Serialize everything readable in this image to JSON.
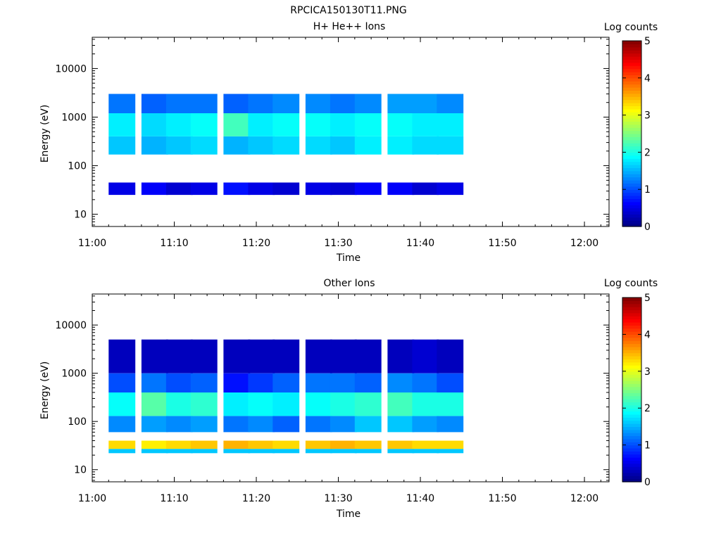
{
  "figure_title": "RPCICA150130T11.PNG",
  "panels": [
    {
      "title": "H+ He++ Ions",
      "xlabel": "Time",
      "ylabel": "Energy (eV)",
      "cbar_label": "Log counts"
    },
    {
      "title": "Other Ions",
      "xlabel": "Time",
      "ylabel": "Energy (eV)",
      "cbar_label": "Log counts"
    }
  ],
  "colors": {
    "background": "#ffffff",
    "axis": "#000000"
  },
  "chart_data": [
    {
      "type": "heatmap",
      "title": "H+ He++ Ions",
      "xlabel": "Time",
      "ylabel": "Energy (eV)",
      "x_ticks": [
        "11:00",
        "11:10",
        "11:20",
        "11:30",
        "11:40",
        "11:50",
        "12:00"
      ],
      "xlim": [
        "11:00",
        "12:03"
      ],
      "y_scale": "log",
      "y_ticks": [
        "10",
        "100",
        "1000",
        "10000"
      ],
      "ylim": [
        5.6,
        44000
      ],
      "colorbar": {
        "label": "Log counts",
        "ticks": [
          "0",
          "1",
          "2",
          "3",
          "4",
          "5"
        ],
        "range": [
          0,
          5
        ],
        "colormap": "jet"
      },
      "time_bins": [
        "11:02",
        "11:06",
        "11:09",
        "11:12",
        "11:16",
        "11:19",
        "11:22",
        "11:26",
        "11:29",
        "11:32",
        "11:36",
        "11:39",
        "11:42"
      ],
      "energy_bands": [
        {
          "from": 25,
          "to": 45,
          "level": [
            0.5,
            0.6,
            0.4,
            0.5,
            0.7,
            0.5,
            0.4,
            0.5,
            0.4,
            0.6,
            0.6,
            0.4,
            0.5
          ]
        },
        {
          "from": 170,
          "to": 400,
          "level": [
            1.6,
            1.5,
            1.6,
            1.7,
            1.5,
            1.6,
            1.7,
            1.7,
            1.6,
            1.8,
            1.8,
            1.7,
            1.7
          ]
        },
        {
          "from": 400,
          "to": 1200,
          "level": [
            1.8,
            1.7,
            1.8,
            1.9,
            2.2,
            1.8,
            1.9,
            1.9,
            1.8,
            1.9,
            1.9,
            1.8,
            1.8
          ]
        },
        {
          "from": 1200,
          "to": 3000,
          "level": [
            1.2,
            1.1,
            1.2,
            1.2,
            1.1,
            1.2,
            1.3,
            1.3,
            1.2,
            1.3,
            1.4,
            1.4,
            1.3
          ]
        }
      ]
    },
    {
      "type": "heatmap",
      "title": "Other Ions",
      "xlabel": "Time",
      "ylabel": "Energy (eV)",
      "x_ticks": [
        "11:00",
        "11:10",
        "11:20",
        "11:30",
        "11:40",
        "11:50",
        "12:00"
      ],
      "xlim": [
        "11:00",
        "12:03"
      ],
      "y_scale": "log",
      "y_ticks": [
        "10",
        "100",
        "1000",
        "10000"
      ],
      "ylim": [
        5.6,
        44000
      ],
      "colorbar": {
        "label": "Log counts",
        "ticks": [
          "0",
          "1",
          "2",
          "3",
          "4",
          "5"
        ],
        "range": [
          0,
          5
        ],
        "colormap": "jet"
      },
      "time_bins": [
        "11:02",
        "11:06",
        "11:09",
        "11:12",
        "11:16",
        "11:19",
        "11:22",
        "11:26",
        "11:29",
        "11:32",
        "11:36",
        "11:39",
        "11:42"
      ],
      "energy_bands": [
        {
          "from": 22,
          "to": 27,
          "level": [
            1.6,
            1.6,
            1.6,
            1.6,
            1.6,
            1.6,
            1.6,
            1.6,
            1.6,
            1.6,
            1.6,
            1.6,
            1.6
          ]
        },
        {
          "from": 27,
          "to": 40,
          "level": [
            3.3,
            3.2,
            3.3,
            3.4,
            3.5,
            3.4,
            3.3,
            3.4,
            3.5,
            3.4,
            3.4,
            3.3,
            3.3
          ]
        },
        {
          "from": 60,
          "to": 130,
          "level": [
            1.3,
            1.4,
            1.3,
            1.4,
            1.2,
            1.3,
            1.1,
            1.2,
            1.3,
            1.6,
            1.6,
            1.4,
            1.3
          ]
        },
        {
          "from": 130,
          "to": 400,
          "level": [
            1.9,
            2.3,
            2.0,
            2.1,
            1.8,
            1.9,
            1.8,
            1.9,
            2.0,
            2.1,
            2.2,
            2.0,
            2.0
          ]
        },
        {
          "from": 400,
          "to": 1000,
          "level": [
            1.0,
            1.2,
            1.0,
            1.1,
            0.7,
            0.9,
            1.1,
            1.2,
            1.2,
            1.1,
            1.3,
            1.2,
            1.0
          ]
        },
        {
          "from": 1000,
          "to": 5000,
          "level": [
            0.3,
            0.3,
            0.3,
            0.3,
            0.3,
            0.3,
            0.3,
            0.3,
            0.3,
            0.3,
            0.3,
            0.4,
            0.3
          ]
        }
      ]
    }
  ]
}
